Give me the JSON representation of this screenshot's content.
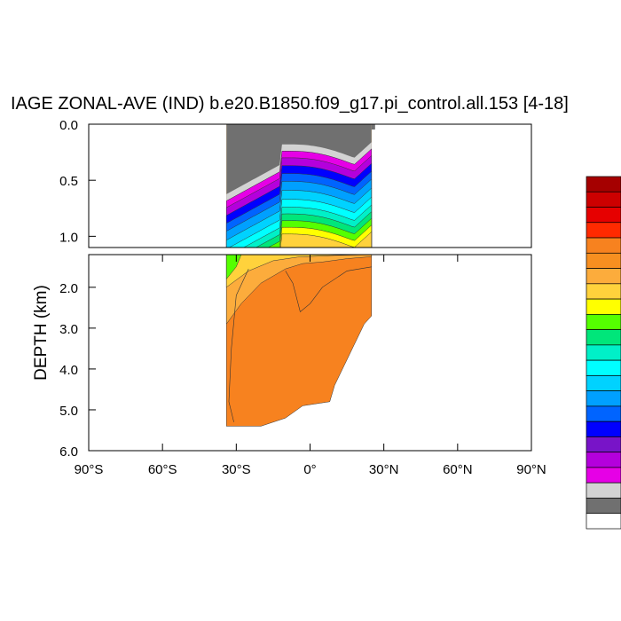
{
  "chart_data": {
    "type": "contour",
    "title": "IAGE ZONAL-AVE (IND) b.e20.B1850.f09_g17.pi_control.all.153 [4-18]",
    "ylabel": "DEPTH (km)",
    "xlabel": "",
    "x_range": [
      -90,
      90
    ],
    "x_ticks": [
      -90,
      -60,
      -30,
      0,
      30,
      60,
      90
    ],
    "x_tick_labels": [
      "90°S",
      "60°S",
      "30°S",
      "0°",
      "30°N",
      "60°N",
      "90°N"
    ],
    "upper_panel": {
      "y_range": [
        0.0,
        1.1
      ],
      "y_ticks": [
        0.0,
        0.5,
        1.0
      ],
      "y_tick_labels": [
        "0.0",
        "0.5",
        "1.0"
      ]
    },
    "lower_panel": {
      "y_range": [
        1.2,
        6.0
      ],
      "y_ticks": [
        2.0,
        3.0,
        4.0,
        5.0,
        6.0
      ],
      "y_tick_labels": [
        "2.0",
        "3.0",
        "4.0",
        "5.0",
        "6.0"
      ]
    },
    "data_extent": {
      "lon_min": -34,
      "lon_max": 25,
      "bottom_depth_km": 5.4,
      "bathymetry": [
        [
          -34,
          5.4
        ],
        [
          -20,
          5.4
        ],
        [
          -10,
          5.2
        ],
        [
          -3,
          4.9
        ],
        [
          8,
          4.8
        ],
        [
          10,
          4.4
        ],
        [
          14,
          3.9
        ],
        [
          18,
          3.4
        ],
        [
          22,
          2.9
        ],
        [
          25,
          2.7
        ]
      ],
      "land_lat_max": 25
    },
    "colorbar": {
      "placement": "right",
      "labels_shown": false,
      "colors": [
        "#a50000",
        "#cc0000",
        "#e60000",
        "#ff2a00",
        "#f7821f",
        "#f78f20",
        "#fcac3c",
        "#ffd23c",
        "#ffff00",
        "#55ff00",
        "#00e67a",
        "#00f0c8",
        "#00ffff",
        "#00d2ff",
        "#00a0ff",
        "#0064ff",
        "#0000ff",
        "#7814c8",
        "#b400dc",
        "#e600e6",
        "#d3d3d3",
        "#707070",
        "#ffffff"
      ]
    },
    "layer_depths_upper_km": [
      {
        "color": "#e600e6",
        "z": 0.42
      },
      {
        "color": "#b400dc",
        "z": 0.48
      },
      {
        "color": "#0000ff",
        "z": 0.55
      },
      {
        "color": "#0064ff",
        "z": 0.62
      },
      {
        "color": "#00a0ff",
        "z": 0.69
      },
      {
        "color": "#00d2ff",
        "z": 0.77
      },
      {
        "color": "#00ffff",
        "z": 0.85
      },
      {
        "color": "#00f0c8",
        "z": 0.92
      },
      {
        "color": "#00e67a",
        "z": 0.98
      },
      {
        "color": "#55ff00",
        "z": 1.04
      },
      {
        "color": "#ffff00",
        "z": 1.1
      }
    ],
    "layer_colors_lower": {
      "top": "#ffd23c",
      "main": "#f7821f",
      "transition": "#fcac3c",
      "shallow": "#55ff00"
    }
  }
}
